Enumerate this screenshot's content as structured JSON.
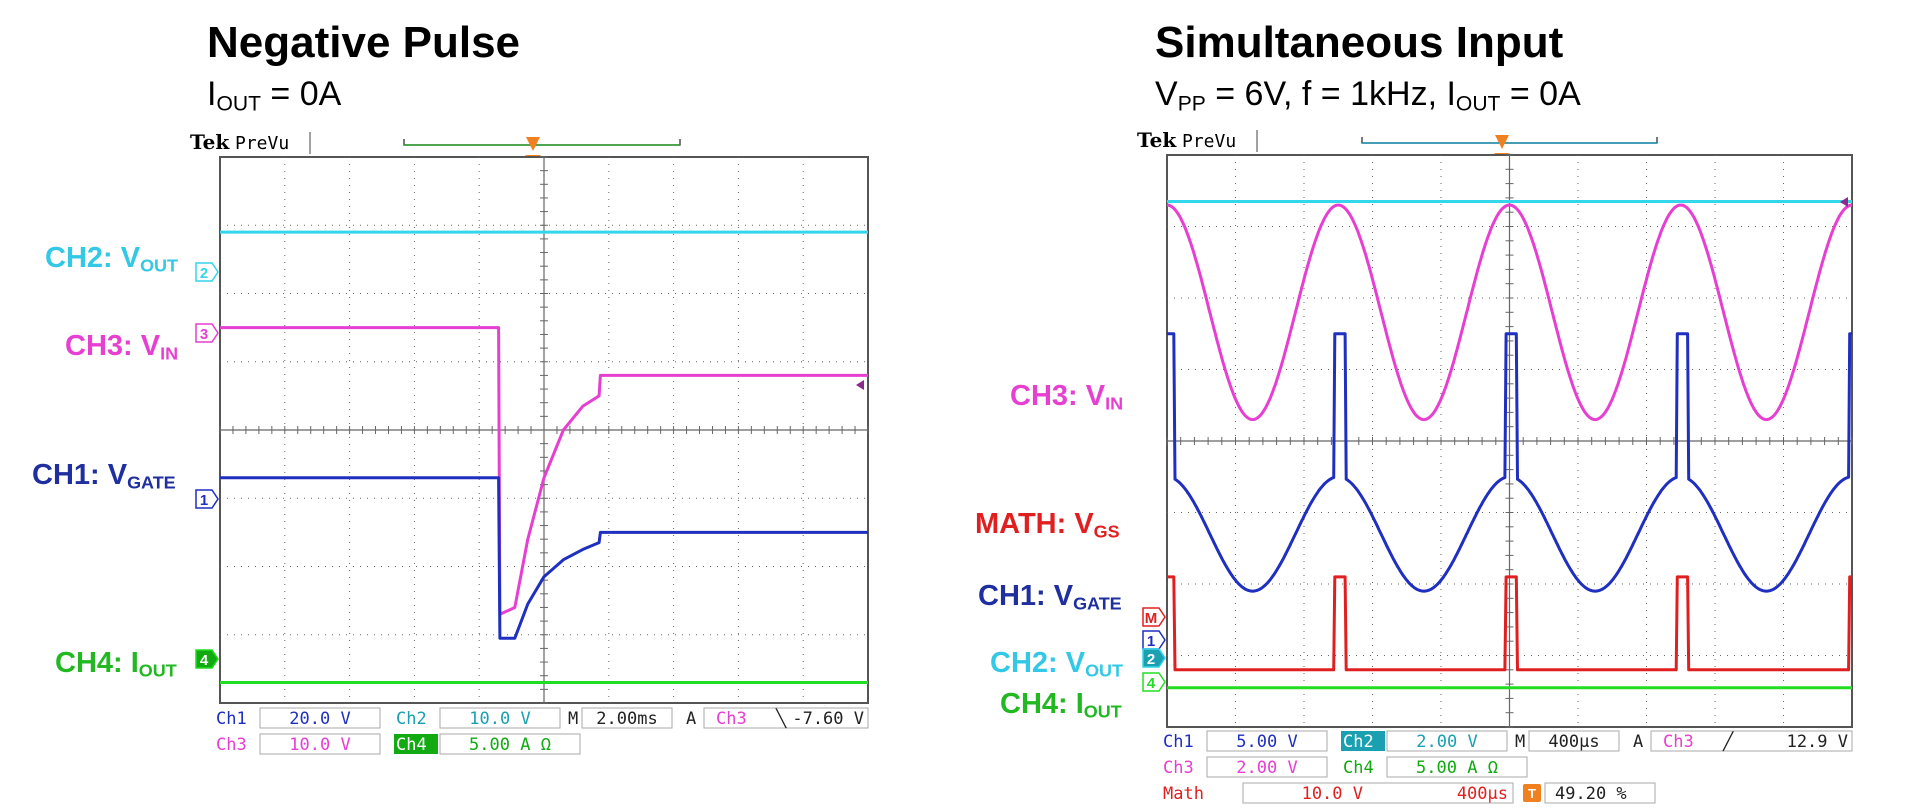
{
  "colors": {
    "ch1": "#1f2fbf",
    "ch2": "#33d6ea",
    "ch3": "#e63fd2",
    "ch4": "#22dd22",
    "math": "#e02020",
    "trigger": "#f08020",
    "grid": "#666666"
  },
  "panels": [
    {
      "title": "Negative Pulse",
      "subtitle_parts": [
        "I",
        "OUT",
        " = 0A"
      ],
      "labels": {
        "ch2": [
          "CH2: V",
          "OUT"
        ],
        "ch3": [
          "CH3: V",
          "IN"
        ],
        "ch1": [
          "CH1: V",
          "GATE"
        ],
        "ch4": [
          "CH4: I",
          "OUT"
        ]
      },
      "scope": {
        "brand": "Tek",
        "mode": "PreVu",
        "trigger_marker": "T",
        "markers": [
          "2",
          "3",
          "1",
          "4"
        ],
        "status": {
          "row1": [
            "Ch1",
            "20.0 V",
            "Ch2",
            "10.0 V",
            "M",
            "2.00ms",
            "A",
            "Ch3",
            "╲",
            "-7.60 V"
          ],
          "row2": [
            "Ch3",
            "10.0 V",
            "Ch4",
            "5.00 A Ω"
          ]
        }
      },
      "chart_data": {
        "type": "line",
        "title": "Negative Pulse",
        "xlabel": "",
        "ylabel": "",
        "grid": true,
        "x_divisions": 10,
        "y_divisions": 8,
        "units": "divisions",
        "series": [
          {
            "name": "CH2: VOUT",
            "color": "ch2",
            "x": [
              0,
              10
            ],
            "y": [
              6.9,
              6.9
            ]
          },
          {
            "name": "CH3: VIN",
            "color": "ch3",
            "x": [
              0,
              4.3,
              4.32,
              4.55,
              4.75,
              5.0,
              5.3,
              5.6,
              5.85,
              5.87,
              10
            ],
            "y": [
              5.5,
              5.5,
              1.3,
              1.4,
              2.4,
              3.3,
              4.0,
              4.35,
              4.5,
              4.8,
              4.8
            ]
          },
          {
            "name": "CH1: VGATE",
            "color": "ch1",
            "x": [
              0,
              4.3,
              4.32,
              4.55,
              4.75,
              5.0,
              5.3,
              5.6,
              5.85,
              5.87,
              10
            ],
            "y": [
              3.3,
              3.3,
              0.95,
              0.95,
              1.45,
              1.85,
              2.1,
              2.25,
              2.35,
              2.5,
              2.5
            ]
          },
          {
            "name": "CH4: IOUT",
            "color": "ch4",
            "x": [
              0,
              10
            ],
            "y": [
              0.3,
              0.3
            ]
          }
        ]
      }
    },
    {
      "title": "Simultaneous Input",
      "subtitle_parts": [
        "V",
        "PP",
        " = 6V, f = 1kHz, I",
        "OUT",
        " = 0A"
      ],
      "labels": {
        "ch3": [
          "CH3: V",
          "IN"
        ],
        "math": [
          "MATH: V",
          "GS"
        ],
        "ch1": [
          "CH1: V",
          "GATE"
        ],
        "ch2": [
          "CH2: V",
          "OUT"
        ],
        "ch4": [
          "CH4: I",
          "OUT"
        ]
      },
      "scope": {
        "brand": "Tek",
        "mode": "PreVu",
        "trigger_marker": "T",
        "markers": [
          "M",
          "1",
          "2",
          "4"
        ],
        "status": {
          "row1": [
            "Ch1",
            "5.00 V",
            "Ch2",
            "2.00 V",
            "M",
            "400µs",
            "A",
            "Ch3",
            "╱",
            "12.9 V"
          ],
          "row2": [
            "Ch3",
            "2.00 V",
            "Ch4",
            "5.00 A Ω"
          ],
          "row3": [
            "Math",
            "10.0 V",
            "400µs",
            "T",
            "49.20 %"
          ]
        }
      },
      "chart_data": {
        "type": "line",
        "title": "Simultaneous Input",
        "xlabel": "",
        "ylabel": "",
        "grid": true,
        "x_divisions": 10,
        "y_divisions": 8,
        "units": "divisions",
        "series": [
          {
            "name": "CH2: VOUT",
            "color": "ch2",
            "x": [
              0,
              10
            ],
            "y": [
              7.35,
              7.35
            ]
          },
          {
            "name": "CH3: VIN",
            "color": "ch3",
            "type": "sine",
            "period": 2.5,
            "peak_x": 2.5,
            "max": 7.3,
            "min": 4.3
          },
          {
            "name": "CH1: VGATE",
            "color": "ch1",
            "type": "sine_pulse",
            "period": 2.5,
            "peak_x": 2.5,
            "max": 3.5,
            "min": 1.9,
            "pulse_high": 5.5,
            "pulse_start": 2.45,
            "pulse_end": 2.6
          },
          {
            "name": "MATH: VGS",
            "color": "math",
            "type": "pulse",
            "period": 2.5,
            "base": 0.8,
            "high": 2.1,
            "pulse_start": 2.45,
            "pulse_end": 2.6
          },
          {
            "name": "CH4: IOUT",
            "color": "ch4",
            "x": [
              0,
              10
            ],
            "y": [
              0.55,
              0.55
            ]
          }
        ]
      }
    }
  ]
}
